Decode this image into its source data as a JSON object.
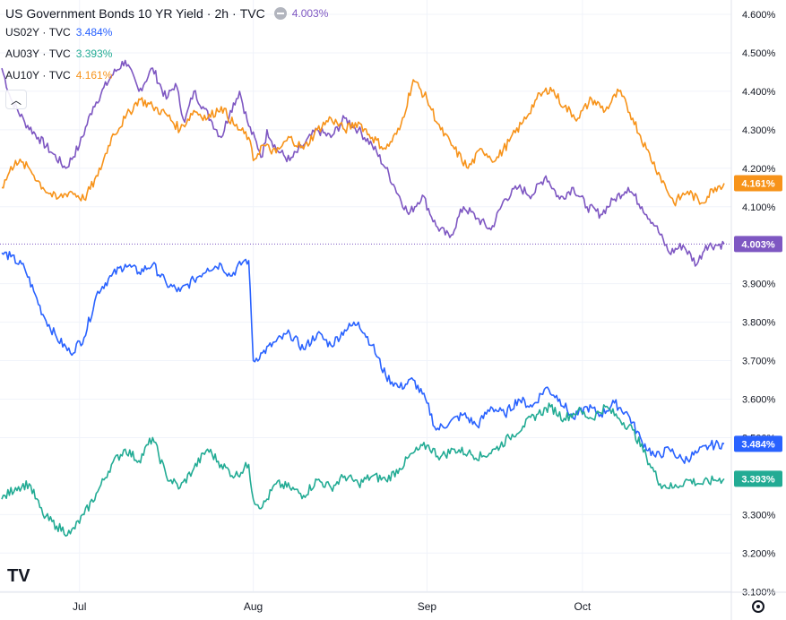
{
  "legend": {
    "title": "US Government Bonds 10 YR Yield",
    "interval": "2h",
    "source": "TVC",
    "value": "4.003%",
    "series": [
      {
        "symbol": "US02Y",
        "source": "TVC",
        "value": "3.484%",
        "color": "#2962ff"
      },
      {
        "symbol": "AU03Y",
        "source": "TVC",
        "value": "3.393%",
        "color": "#22ab94"
      },
      {
        "symbol": "AU10Y",
        "source": "TVC",
        "value": "4.161%",
        "color": "#f7931a"
      }
    ]
  },
  "controls": {
    "collapse_icon": "chevron-up-icon",
    "settings_icon": "gear-icon",
    "logo": "TV"
  },
  "chart_data": {
    "type": "line",
    "yaxis_labels": [
      "4.600%",
      "4.500%",
      "4.400%",
      "4.300%",
      "4.200%",
      "4.100%",
      "3.900%",
      "3.800%",
      "3.700%",
      "3.600%",
      "3.500%",
      "3.300%",
      "3.200%",
      "3.100%"
    ],
    "xaxis_labels": [
      "Jul",
      "Aug",
      "Sep",
      "Oct"
    ],
    "ylim": [
      3.1,
      4.62
    ],
    "grid": true,
    "last_value_labels": [
      {
        "text": "4.161%",
        "value": 4.161,
        "color": "#f7931a"
      },
      {
        "text": "4.003%",
        "value": 4.003,
        "color": "#7e57c2"
      },
      {
        "text": "3.484%",
        "value": 3.484,
        "color": "#2962ff"
      },
      {
        "text": "3.393%",
        "value": 3.393,
        "color": "#22ab94"
      }
    ],
    "series": [
      {
        "name": "US10Y",
        "color": "#7e57c2",
        "points": [
          [
            0,
            4.46
          ],
          [
            2,
            4.38
          ],
          [
            5,
            4.32
          ],
          [
            8,
            4.28
          ],
          [
            11,
            4.24
          ],
          [
            14,
            4.2
          ],
          [
            17,
            4.26
          ],
          [
            20,
            4.36
          ],
          [
            24,
            4.44
          ],
          [
            27,
            4.48
          ],
          [
            30,
            4.4
          ],
          [
            33,
            4.46
          ],
          [
            36,
            4.38
          ],
          [
            38,
            4.42
          ],
          [
            40,
            4.32
          ],
          [
            42,
            4.4
          ],
          [
            44,
            4.36
          ],
          [
            46,
            4.32
          ],
          [
            48,
            4.28
          ],
          [
            50,
            4.35
          ],
          [
            52,
            4.4
          ],
          [
            54,
            4.31
          ],
          [
            57,
            4.23
          ],
          [
            58,
            4.3
          ],
          [
            60,
            4.25
          ],
          [
            63,
            4.22
          ],
          [
            66,
            4.26
          ],
          [
            69,
            4.3
          ],
          [
            72,
            4.28
          ],
          [
            75,
            4.33
          ],
          [
            78,
            4.3
          ],
          [
            81,
            4.26
          ],
          [
            84,
            4.2
          ],
          [
            86,
            4.15
          ],
          [
            89,
            4.08
          ],
          [
            92,
            4.13
          ],
          [
            95,
            4.05
          ],
          [
            98,
            4.02
          ],
          [
            101,
            4.1
          ],
          [
            104,
            4.07
          ],
          [
            107,
            4.04
          ],
          [
            110,
            4.12
          ],
          [
            113,
            4.15
          ],
          [
            116,
            4.13
          ],
          [
            119,
            4.18
          ],
          [
            122,
            4.12
          ],
          [
            125,
            4.15
          ],
          [
            128,
            4.1
          ],
          [
            131,
            4.08
          ],
          [
            134,
            4.12
          ],
          [
            137,
            4.15
          ],
          [
            140,
            4.1
          ],
          [
            143,
            4.05
          ],
          [
            146,
            3.98
          ],
          [
            149,
            4.0
          ],
          [
            152,
            3.95
          ],
          [
            154,
            4.0
          ],
          [
            156,
            4.0
          ],
          [
            158,
            4.003
          ]
        ]
      },
      {
        "name": "US02Y",
        "color": "#2962ff",
        "points": [
          [
            0,
            3.98
          ],
          [
            2,
            3.97
          ],
          [
            5,
            3.94
          ],
          [
            7,
            3.88
          ],
          [
            9,
            3.82
          ],
          [
            12,
            3.76
          ],
          [
            15,
            3.72
          ],
          [
            18,
            3.76
          ],
          [
            21,
            3.88
          ],
          [
            24,
            3.92
          ],
          [
            27,
            3.95
          ],
          [
            30,
            3.93
          ],
          [
            33,
            3.95
          ],
          [
            36,
            3.9
          ],
          [
            39,
            3.88
          ],
          [
            42,
            3.91
          ],
          [
            45,
            3.94
          ],
          [
            48,
            3.95
          ],
          [
            50,
            3.92
          ],
          [
            53,
            3.96
          ],
          [
            54,
            3.96
          ],
          [
            55,
            3.7
          ],
          [
            57,
            3.72
          ],
          [
            60,
            3.75
          ],
          [
            63,
            3.77
          ],
          [
            66,
            3.73
          ],
          [
            69,
            3.77
          ],
          [
            72,
            3.74
          ],
          [
            75,
            3.78
          ],
          [
            78,
            3.8
          ],
          [
            81,
            3.74
          ],
          [
            84,
            3.66
          ],
          [
            87,
            3.63
          ],
          [
            90,
            3.65
          ],
          [
            93,
            3.59
          ],
          [
            95,
            3.52
          ],
          [
            98,
            3.54
          ],
          [
            101,
            3.56
          ],
          [
            104,
            3.53
          ],
          [
            107,
            3.58
          ],
          [
            110,
            3.56
          ],
          [
            113,
            3.6
          ],
          [
            116,
            3.58
          ],
          [
            119,
            3.63
          ],
          [
            122,
            3.6
          ],
          [
            125,
            3.55
          ],
          [
            128,
            3.58
          ],
          [
            131,
            3.56
          ],
          [
            134,
            3.59
          ],
          [
            137,
            3.56
          ],
          [
            140,
            3.49
          ],
          [
            143,
            3.45
          ],
          [
            146,
            3.47
          ],
          [
            149,
            3.44
          ],
          [
            152,
            3.46
          ],
          [
            155,
            3.48
          ],
          [
            158,
            3.484
          ]
        ]
      },
      {
        "name": "AU03Y",
        "color": "#22ab94",
        "points": [
          [
            0,
            3.34
          ],
          [
            3,
            3.37
          ],
          [
            6,
            3.38
          ],
          [
            9,
            3.3
          ],
          [
            12,
            3.27
          ],
          [
            15,
            3.25
          ],
          [
            18,
            3.3
          ],
          [
            21,
            3.36
          ],
          [
            24,
            3.43
          ],
          [
            27,
            3.47
          ],
          [
            30,
            3.44
          ],
          [
            33,
            3.5
          ],
          [
            36,
            3.4
          ],
          [
            39,
            3.37
          ],
          [
            42,
            3.42
          ],
          [
            45,
            3.47
          ],
          [
            48,
            3.43
          ],
          [
            51,
            3.4
          ],
          [
            54,
            3.43
          ],
          [
            55,
            3.34
          ],
          [
            57,
            3.32
          ],
          [
            60,
            3.38
          ],
          [
            63,
            3.37
          ],
          [
            66,
            3.35
          ],
          [
            69,
            3.39
          ],
          [
            72,
            3.37
          ],
          [
            75,
            3.4
          ],
          [
            78,
            3.38
          ],
          [
            81,
            3.4
          ],
          [
            84,
            3.39
          ],
          [
            87,
            3.42
          ],
          [
            90,
            3.46
          ],
          [
            93,
            3.48
          ],
          [
            96,
            3.45
          ],
          [
            99,
            3.47
          ],
          [
            102,
            3.46
          ],
          [
            105,
            3.45
          ],
          [
            108,
            3.47
          ],
          [
            111,
            3.5
          ],
          [
            114,
            3.53
          ],
          [
            117,
            3.56
          ],
          [
            120,
            3.58
          ],
          [
            123,
            3.55
          ],
          [
            126,
            3.57
          ],
          [
            129,
            3.55
          ],
          [
            132,
            3.58
          ],
          [
            135,
            3.55
          ],
          [
            138,
            3.52
          ],
          [
            141,
            3.45
          ],
          [
            144,
            3.38
          ],
          [
            147,
            3.37
          ],
          [
            150,
            3.39
          ],
          [
            153,
            3.38
          ],
          [
            156,
            3.39
          ],
          [
            158,
            3.393
          ]
        ]
      },
      {
        "name": "AU10Y",
        "color": "#f7931a",
        "points": [
          [
            0,
            4.15
          ],
          [
            3,
            4.22
          ],
          [
            6,
            4.2
          ],
          [
            9,
            4.15
          ],
          [
            12,
            4.12
          ],
          [
            15,
            4.14
          ],
          [
            18,
            4.12
          ],
          [
            21,
            4.18
          ],
          [
            24,
            4.28
          ],
          [
            27,
            4.33
          ],
          [
            30,
            4.38
          ],
          [
            33,
            4.36
          ],
          [
            36,
            4.34
          ],
          [
            39,
            4.3
          ],
          [
            42,
            4.35
          ],
          [
            45,
            4.33
          ],
          [
            48,
            4.36
          ],
          [
            51,
            4.31
          ],
          [
            54,
            4.28
          ],
          [
            55,
            4.22
          ],
          [
            57,
            4.26
          ],
          [
            60,
            4.24
          ],
          [
            63,
            4.28
          ],
          [
            66,
            4.25
          ],
          [
            69,
            4.3
          ],
          [
            72,
            4.33
          ],
          [
            75,
            4.3
          ],
          [
            78,
            4.32
          ],
          [
            81,
            4.28
          ],
          [
            84,
            4.25
          ],
          [
            87,
            4.3
          ],
          [
            90,
            4.43
          ],
          [
            93,
            4.38
          ],
          [
            96,
            4.3
          ],
          [
            99,
            4.25
          ],
          [
            102,
            4.2
          ],
          [
            105,
            4.25
          ],
          [
            108,
            4.22
          ],
          [
            111,
            4.27
          ],
          [
            114,
            4.32
          ],
          [
            117,
            4.38
          ],
          [
            120,
            4.41
          ],
          [
            123,
            4.36
          ],
          [
            126,
            4.33
          ],
          [
            129,
            4.38
          ],
          [
            132,
            4.35
          ],
          [
            135,
            4.4
          ],
          [
            138,
            4.33
          ],
          [
            141,
            4.25
          ],
          [
            144,
            4.18
          ],
          [
            147,
            4.11
          ],
          [
            150,
            4.14
          ],
          [
            153,
            4.11
          ],
          [
            156,
            4.15
          ],
          [
            158,
            4.161
          ]
        ]
      }
    ]
  }
}
